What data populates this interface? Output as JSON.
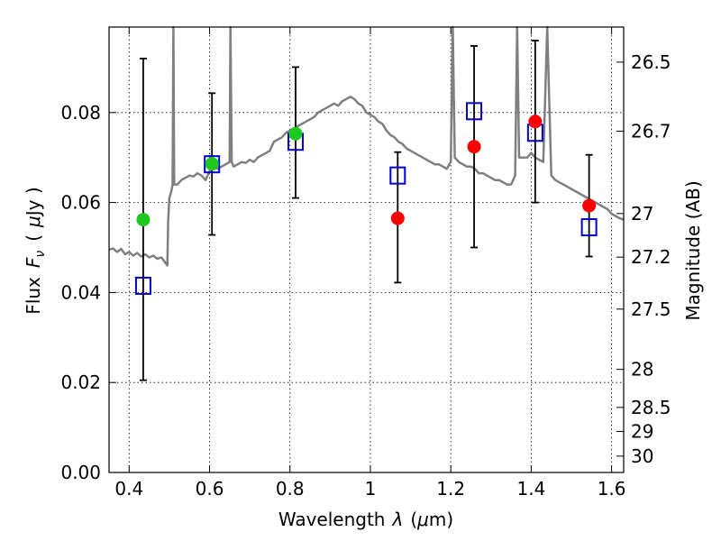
{
  "chart_data": {
    "type": "scatter",
    "xlabel_text": "Wavelength",
    "xlabel_symbol": "λ",
    "xlabel_unit_open": "(",
    "xlabel_unit_mu": "μ",
    "xlabel_unit_close": "m)",
    "ylabel_text": "Flux",
    "ylabel_symbol": "F",
    "ylabel_sub": "ν",
    "ylabel_unit_open": "(",
    "ylabel_unit_mu": "μ",
    "ylabel_unit_close": "Jy )",
    "y2label": "Magnitude (AB)",
    "xlim": [
      0.35,
      1.63
    ],
    "ylim": [
      0.0,
      0.099
    ],
    "x_ticks": [
      {
        "v": 0.4,
        "label": "0.4"
      },
      {
        "v": 0.6,
        "label": "0.6"
      },
      {
        "v": 0.8,
        "label": "0.8"
      },
      {
        "v": 1.0,
        "label": "1"
      },
      {
        "v": 1.2,
        "label": "1.2"
      },
      {
        "v": 1.4,
        "label": "1.4"
      },
      {
        "v": 1.6,
        "label": "1.6"
      }
    ],
    "y_ticks": [
      {
        "v": 0.0,
        "label": "0.00"
      },
      {
        "v": 0.02,
        "label": "0.02"
      },
      {
        "v": 0.04,
        "label": "0.04"
      },
      {
        "v": 0.06,
        "label": "0.06"
      },
      {
        "v": 0.08,
        "label": "0.08"
      }
    ],
    "mag_ticks": [
      {
        "v": 26.5,
        "label": "26.5"
      },
      {
        "v": 26.7,
        "label": "26.7"
      },
      {
        "v": 27.0,
        "label": "27"
      },
      {
        "v": 27.2,
        "label": "27.2"
      },
      {
        "v": 27.5,
        "label": "27.5"
      },
      {
        "v": 28.0,
        "label": "28"
      },
      {
        "v": 28.5,
        "label": "28.5"
      },
      {
        "v": 29.0,
        "label": "29"
      },
      {
        "v": 30.0,
        "label": "30"
      }
    ],
    "observed": [
      {
        "x": 0.435,
        "y": 0.0562,
        "yerr_low": 0.0205,
        "yerr_high": 0.092,
        "color": "#1ec81e"
      },
      {
        "x": 0.606,
        "y": 0.0686,
        "yerr_low": 0.0528,
        "yerr_high": 0.0843,
        "color": "#1ec81e"
      },
      {
        "x": 0.814,
        "y": 0.0753,
        "yerr_low": 0.061,
        "yerr_high": 0.0901,
        "color": "#1ec81e"
      },
      {
        "x": 1.068,
        "y": 0.0565,
        "yerr_low": 0.0422,
        "yerr_high": 0.0712,
        "color": "#ff0000"
      },
      {
        "x": 1.258,
        "y": 0.0724,
        "yerr_low": 0.05,
        "yerr_high": 0.0948,
        "color": "#ff0000"
      },
      {
        "x": 1.41,
        "y": 0.078,
        "yerr_low": 0.06,
        "yerr_high": 0.096,
        "color": "#ff0000"
      },
      {
        "x": 1.544,
        "y": 0.0593,
        "yerr_low": 0.048,
        "yerr_high": 0.0706,
        "color": "#ff0000"
      }
    ],
    "model_points": [
      {
        "x": 0.435,
        "y": 0.0415
      },
      {
        "x": 0.606,
        "y": 0.0685
      },
      {
        "x": 0.814,
        "y": 0.0735
      },
      {
        "x": 1.068,
        "y": 0.066
      },
      {
        "x": 1.258,
        "y": 0.0803
      },
      {
        "x": 1.41,
        "y": 0.0755
      },
      {
        "x": 1.544,
        "y": 0.0545
      }
    ],
    "template_spectrum": [
      [
        0.35,
        0.0495
      ],
      [
        0.36,
        0.0498
      ],
      [
        0.37,
        0.049
      ],
      [
        0.38,
        0.0497
      ],
      [
        0.39,
        0.0485
      ],
      [
        0.4,
        0.049
      ],
      [
        0.41,
        0.0482
      ],
      [
        0.42,
        0.0488
      ],
      [
        0.43,
        0.048
      ],
      [
        0.44,
        0.0485
      ],
      [
        0.45,
        0.0478
      ],
      [
        0.46,
        0.0482
      ],
      [
        0.47,
        0.0475
      ],
      [
        0.48,
        0.0478
      ],
      [
        0.487,
        0.047
      ],
      [
        0.495,
        0.046
      ],
      [
        0.497,
        0.056
      ],
      [
        0.5,
        0.061
      ],
      [
        0.505,
        0.0625
      ],
      [
        0.508,
        0.064
      ],
      [
        0.51,
        0.099
      ],
      [
        0.512,
        0.064
      ],
      [
        0.52,
        0.064
      ],
      [
        0.53,
        0.065
      ],
      [
        0.54,
        0.0655
      ],
      [
        0.55,
        0.066
      ],
      [
        0.56,
        0.0658
      ],
      [
        0.57,
        0.0665
      ],
      [
        0.58,
        0.066
      ],
      [
        0.59,
        0.065
      ],
      [
        0.6,
        0.067
      ],
      [
        0.61,
        0.068
      ],
      [
        0.62,
        0.0675
      ],
      [
        0.63,
        0.068
      ],
      [
        0.64,
        0.0685
      ],
      [
        0.65,
        0.069
      ],
      [
        0.652,
        0.099
      ],
      [
        0.655,
        0.069
      ],
      [
        0.66,
        0.068
      ],
      [
        0.67,
        0.0685
      ],
      [
        0.68,
        0.069
      ],
      [
        0.69,
        0.0688
      ],
      [
        0.7,
        0.0695
      ],
      [
        0.71,
        0.069
      ],
      [
        0.72,
        0.07
      ],
      [
        0.73,
        0.0705
      ],
      [
        0.74,
        0.071
      ],
      [
        0.75,
        0.0715
      ],
      [
        0.76,
        0.0735
      ],
      [
        0.77,
        0.074
      ],
      [
        0.78,
        0.0745
      ],
      [
        0.79,
        0.0755
      ],
      [
        0.8,
        0.076
      ],
      [
        0.81,
        0.0765
      ],
      [
        0.82,
        0.077
      ],
      [
        0.83,
        0.0775
      ],
      [
        0.84,
        0.078
      ],
      [
        0.85,
        0.0785
      ],
      [
        0.86,
        0.079
      ],
      [
        0.87,
        0.08
      ],
      [
        0.88,
        0.0805
      ],
      [
        0.89,
        0.081
      ],
      [
        0.9,
        0.0815
      ],
      [
        0.91,
        0.082
      ],
      [
        0.92,
        0.0815
      ],
      [
        0.93,
        0.0825
      ],
      [
        0.94,
        0.083
      ],
      [
        0.95,
        0.0835
      ],
      [
        0.96,
        0.083
      ],
      [
        0.97,
        0.082
      ],
      [
        0.98,
        0.0815
      ],
      [
        0.99,
        0.08
      ],
      [
        1.0,
        0.0795
      ],
      [
        1.01,
        0.079
      ],
      [
        1.02,
        0.078
      ],
      [
        1.03,
        0.0775
      ],
      [
        1.04,
        0.076
      ],
      [
        1.05,
        0.075
      ],
      [
        1.06,
        0.0745
      ],
      [
        1.07,
        0.0735
      ],
      [
        1.08,
        0.073
      ],
      [
        1.09,
        0.072
      ],
      [
        1.1,
        0.0715
      ],
      [
        1.11,
        0.071
      ],
      [
        1.12,
        0.0705
      ],
      [
        1.13,
        0.07
      ],
      [
        1.14,
        0.0695
      ],
      [
        1.15,
        0.069
      ],
      [
        1.16,
        0.0685
      ],
      [
        1.17,
        0.0685
      ],
      [
        1.18,
        0.068
      ],
      [
        1.19,
        0.0675
      ],
      [
        1.2,
        0.069
      ],
      [
        1.205,
        0.099
      ],
      [
        1.21,
        0.07
      ],
      [
        1.22,
        0.069
      ],
      [
        1.23,
        0.0685
      ],
      [
        1.24,
        0.068
      ],
      [
        1.25,
        0.068
      ],
      [
        1.26,
        0.0675
      ],
      [
        1.27,
        0.0665
      ],
      [
        1.28,
        0.0665
      ],
      [
        1.29,
        0.066
      ],
      [
        1.3,
        0.0655
      ],
      [
        1.31,
        0.065
      ],
      [
        1.32,
        0.065
      ],
      [
        1.33,
        0.0645
      ],
      [
        1.34,
        0.064
      ],
      [
        1.35,
        0.064
      ],
      [
        1.36,
        0.066
      ],
      [
        1.365,
        0.099
      ],
      [
        1.37,
        0.07
      ],
      [
        1.38,
        0.07
      ],
      [
        1.39,
        0.07
      ],
      [
        1.4,
        0.071
      ],
      [
        1.41,
        0.07
      ],
      [
        1.42,
        0.0695
      ],
      [
        1.43,
        0.069
      ],
      [
        1.44,
        0.099
      ],
      [
        1.45,
        0.066
      ],
      [
        1.46,
        0.065
      ],
      [
        1.47,
        0.0645
      ],
      [
        1.48,
        0.064
      ],
      [
        1.49,
        0.0635
      ],
      [
        1.5,
        0.063
      ],
      [
        1.51,
        0.0625
      ],
      [
        1.52,
        0.062
      ],
      [
        1.53,
        0.0615
      ],
      [
        1.54,
        0.061
      ],
      [
        1.55,
        0.0605
      ],
      [
        1.56,
        0.06
      ],
      [
        1.57,
        0.0595
      ],
      [
        1.58,
        0.059
      ],
      [
        1.59,
        0.0585
      ],
      [
        1.6,
        0.0575
      ],
      [
        1.61,
        0.057
      ],
      [
        1.62,
        0.0565
      ],
      [
        1.63,
        0.0562
      ]
    ],
    "colors": {
      "template": "#7f7f7f",
      "model_marker": "#0000cc",
      "errorbar": "#000000",
      "frame": "#000000"
    }
  }
}
